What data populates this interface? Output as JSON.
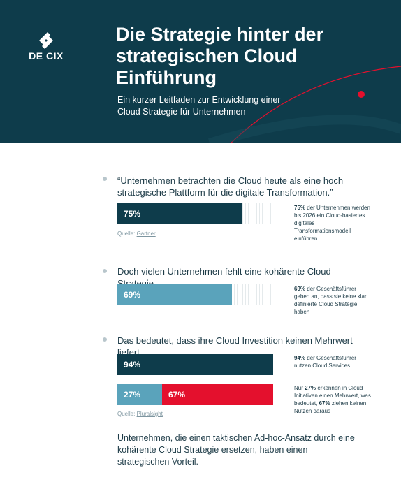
{
  "header": {
    "logo_text": "DE CIX",
    "title": "Die Strategie hinter der strategischen Cloud Einführung",
    "subtitle": "Ein kurzer Leitfaden zur Entwicklung einer Cloud Strategie für Unternehmen",
    "accent_color": "#e4102d",
    "background_color": "#0e3c4b"
  },
  "sections": [
    {
      "statement": "“Unternehmen betrachten die Cloud heute als eine hoch strategische Plattform für die digitale Transformation.”",
      "source_prefix": "Quelle: ",
      "source_name": "Gartner",
      "note_bold": "75%",
      "note_rest": " der Unternehmen werden bis 2026 ein Cloud-basiertes digitales Transformationsmodell einführen"
    },
    {
      "statement": "Doch vielen Unternehmen fehlt eine kohärente Cloud Strategie.",
      "note_bold": "69%",
      "note_rest": " der Geschäftsführer geben an, dass sie keine klar definierte Cloud Strategie haben"
    },
    {
      "statement": "Das bedeutet, dass ihre Cloud Investition keinen Mehrwert liefert.",
      "note1_bold": "94%",
      "note1_rest": " der Geschäftsführer nutzen Cloud Services",
      "note2_pre": "Nur ",
      "note2_bold1": "27%",
      "note2_mid": " erkennen in Cloud Initiativen einen Mehrwert, was bedeutet, ",
      "note2_bold2": "67%",
      "note2_post": " ziehen keinen Nutzen daraus",
      "source_prefix": "Quelle: ",
      "source_name": "Pluralsight"
    }
  ],
  "closing": "Unternehmen, die einen taktischen Ad-hoc-Ansatz durch eine kohärente Cloud Strategie ersetzen, haben einen strategischen Vorteil.",
  "chart_data": [
    {
      "type": "bar",
      "orientation": "horizontal",
      "xlim": [
        0,
        100
      ],
      "bars": [
        {
          "label": "75%",
          "value": 75,
          "color": "#0e3c4b"
        }
      ]
    },
    {
      "type": "bar",
      "orientation": "horizontal",
      "xlim": [
        0,
        100
      ],
      "bars": [
        {
          "label": "69%",
          "value": 69,
          "color": "#5aa3bb"
        }
      ]
    },
    {
      "type": "bar",
      "orientation": "horizontal",
      "xlim": [
        0,
        100
      ],
      "bars": [
        {
          "label": "94%",
          "value": 94,
          "color": "#0e3c4b"
        }
      ]
    },
    {
      "type": "bar",
      "orientation": "horizontal",
      "stacked": true,
      "xlim": [
        0,
        100
      ],
      "bars": [
        {
          "label": "27%",
          "value": 27,
          "color": "#5aa3bb"
        },
        {
          "label": "67%",
          "value": 67,
          "color": "#e4102d"
        }
      ]
    }
  ]
}
